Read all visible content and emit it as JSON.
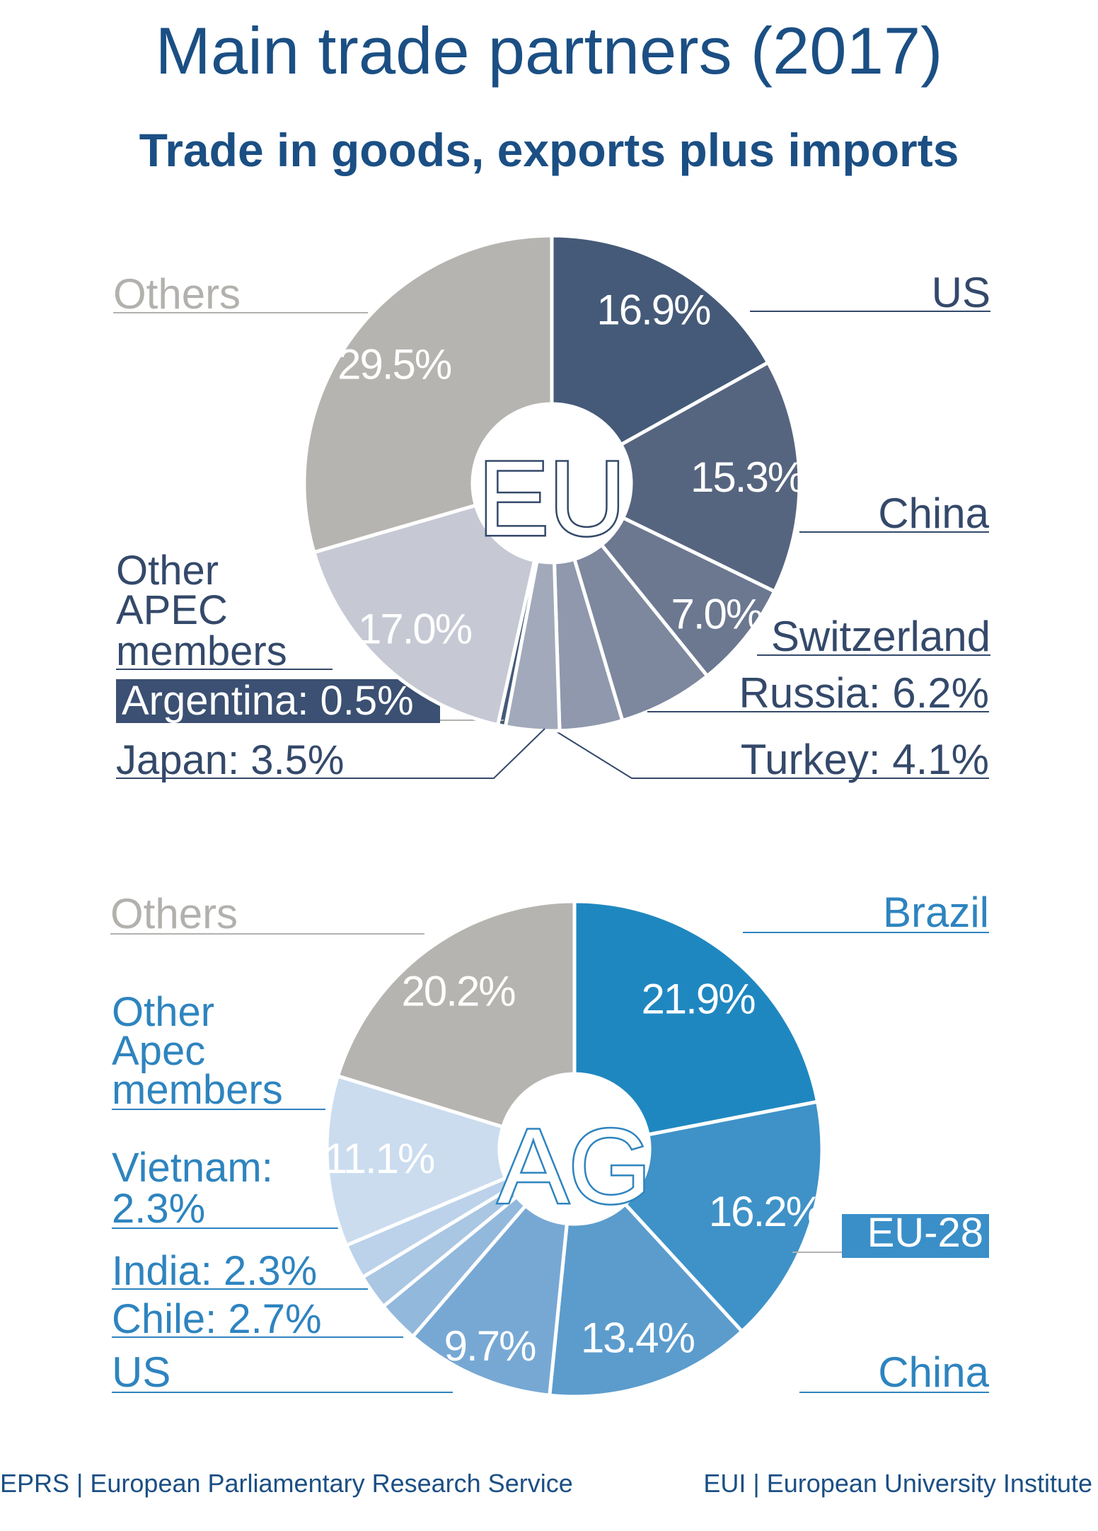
{
  "title": "Main trade partners (2017)",
  "subtitle": "Trade in goods, exports plus imports",
  "footer": {
    "left": "EPRS | European Parliamentary Research Service",
    "right": "EUI | European University Institute"
  },
  "chart_data": [
    {
      "type": "pie",
      "center_label": "EU",
      "slices": [
        {
          "label": "US",
          "value": 16.9,
          "value_text": "16.9%",
          "color": "#455a78"
        },
        {
          "label": "China",
          "value": 15.3,
          "value_text": "15.3%",
          "color": "#56657f"
        },
        {
          "label": "Switzerland",
          "value": 7.0,
          "value_text": "7.0%",
          "color": "#6b7890"
        },
        {
          "label": "Russia: 6.2%",
          "value": 6.2,
          "value_text": "",
          "color": "#7d879d"
        },
        {
          "label": "Turkey: 4.1%",
          "value": 4.1,
          "value_text": "",
          "color": "#8f98ac"
        },
        {
          "label": "Japan: 3.5%",
          "value": 3.5,
          "value_text": "",
          "color": "#a2a9bb"
        },
        {
          "label": "Argentina: 0.5%",
          "value": 0.5,
          "value_text": "",
          "color": "#455a78"
        },
        {
          "label": "Other APEC members",
          "value": 17.0,
          "value_text": "17.0%",
          "color": "#c6c9d4"
        },
        {
          "label": "Others",
          "value": 29.5,
          "value_text": "29.5%",
          "color": "#b6b4b0"
        }
      ],
      "colors": {
        "label_dark": "#34496a",
        "label_light": "#b3b1ad",
        "highlight_bg": "#3b5072"
      }
    },
    {
      "type": "pie",
      "center_label": "AG",
      "slices": [
        {
          "label": "Brazil",
          "value": 21.9,
          "value_text": "21.9%",
          "color": "#1f87c0"
        },
        {
          "label": "EU-28",
          "value": 16.2,
          "value_text": "16.2%",
          "color": "#3e92c8"
        },
        {
          "label": "China",
          "value": 13.4,
          "value_text": "13.4%",
          "color": "#5b9ccd"
        },
        {
          "label": "US",
          "value": 9.7,
          "value_text": "9.7%",
          "color": "#77a8d4"
        },
        {
          "label": "Chile: 2.7%",
          "value": 2.7,
          "value_text": "",
          "color": "#92b8dc"
        },
        {
          "label": "India: 2.3%",
          "value": 2.3,
          "value_text": "",
          "color": "#a9c6e3"
        },
        {
          "label": "Vietnam: 2.3%",
          "value": 2.3,
          "value_text": "",
          "color": "#bcd2ea"
        },
        {
          "label": "Other Apec members",
          "value": 11.1,
          "value_text": "11.1%",
          "color": "#cbdcef"
        },
        {
          "label": "Others",
          "value": 20.2,
          "value_text": "20.2%",
          "color": "#b6b4b0"
        }
      ],
      "colors": {
        "label_dark": "#2e84bf",
        "label_light": "#b3b1ad",
        "highlight_bg": "#3a8fc8"
      }
    }
  ]
}
